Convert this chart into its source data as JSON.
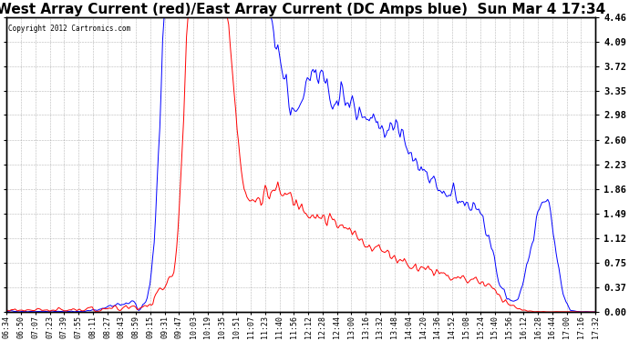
{
  "title": "West Array Current (red)/East Array Current (DC Amps blue)  Sun Mar 4 17:34",
  "copyright": "Copyright 2012 Cartronics.com",
  "ylabel_right_ticks": [
    0.0,
    0.37,
    0.75,
    1.12,
    1.49,
    1.86,
    2.23,
    2.6,
    2.98,
    3.35,
    3.72,
    4.09,
    4.46
  ],
  "ylim": [
    0.0,
    4.46
  ],
  "background_color": "#ffffff",
  "grid_color": "#888888",
  "title_fontsize": 11,
  "red_color": "#ff0000",
  "blue_color": "#0000ff",
  "x_labels": [
    "06:34",
    "06:50",
    "07:07",
    "07:23",
    "07:39",
    "07:55",
    "08:11",
    "08:27",
    "08:43",
    "08:59",
    "09:15",
    "09:31",
    "09:47",
    "10:03",
    "10:19",
    "10:35",
    "10:51",
    "11:07",
    "11:23",
    "11:40",
    "11:56",
    "12:12",
    "12:28",
    "12:44",
    "13:00",
    "13:16",
    "13:32",
    "13:48",
    "14:04",
    "14:20",
    "14:36",
    "14:52",
    "15:08",
    "15:24",
    "15:40",
    "15:56",
    "16:12",
    "16:28",
    "16:44",
    "17:00",
    "17:16",
    "17:32"
  ]
}
